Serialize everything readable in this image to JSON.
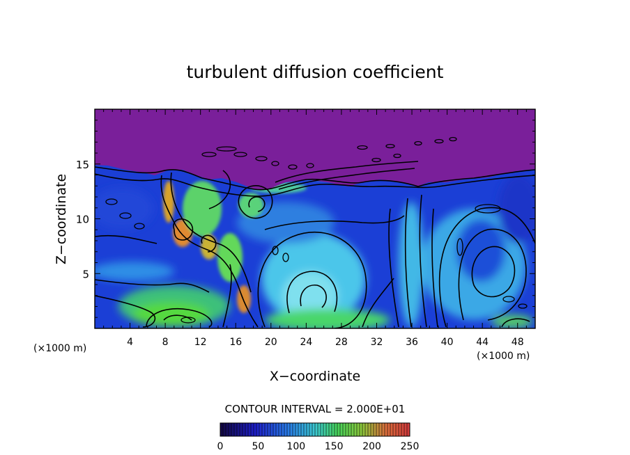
{
  "chart_data": {
    "type": "heatmap",
    "title": "turbulent diffusion coefficient",
    "xlabel": "X−coordinate",
    "ylabel": "Z−coordinate",
    "x_unit_left": "(×1000 m)",
    "x_unit_right": "(×1000 m)",
    "xlim": [
      0,
      50
    ],
    "ylim": [
      0,
      20
    ],
    "xticks": [
      4,
      8,
      12,
      16,
      20,
      24,
      28,
      32,
      36,
      40,
      44,
      48
    ],
    "yticks": [
      5,
      10,
      15
    ],
    "contour_interval_text": "CONTOUR INTERVAL = 2.000E+01",
    "colorbar": {
      "min": 0,
      "max": 250,
      "ticks": [
        0,
        50,
        100,
        150,
        200,
        250
      ]
    },
    "colors": {
      "top_region": "#7a1f9a",
      "low": "#1b2fcf",
      "mid": "#3fb4e8",
      "high": "#43d94a",
      "peak": "#e0603a"
    }
  }
}
